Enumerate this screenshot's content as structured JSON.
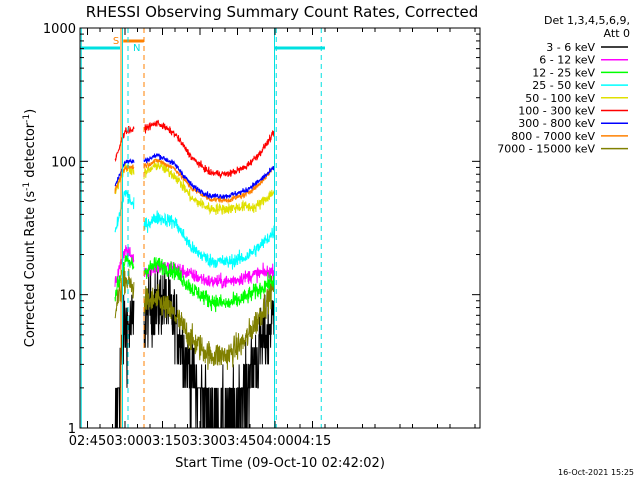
{
  "chart_data": {
    "type": "line",
    "title": "RHESSI Observing Summary Count Rates, Corrected",
    "xlabel": "Start Time (09-Oct-10 02:42:02)",
    "ylabel_main": "Corrected Count Rate (s",
    "ylabel_sup1": "-1",
    "ylabel_mid": " detector",
    "ylabel_sup2": "-1",
    "ylabel_end": ")",
    "yscale": "log",
    "ylim": [
      1,
      1000
    ],
    "xlim_min": [
      162,
      322
    ],
    "x_tick_minutes": [
      165,
      180,
      195,
      210,
      225,
      240,
      255
    ],
    "x_tick_labels": [
      "02:45",
      "03:00",
      "03:15",
      "03:30",
      "03:45",
      "04:00",
      "04:15"
    ],
    "y_ticks": [
      1,
      10,
      100,
      1000
    ],
    "y_tick_labels": [
      "1",
      "10",
      "100",
      "1000"
    ],
    "detector_header": [
      "Det 1,3,4,5,6,9,",
      "Att 0"
    ],
    "timestamp": "16-Oct-2021 15:25",
    "data_gaps_min": [
      [
        176,
        178
      ],
      [
        183.7,
        187.6
      ],
      [
        240,
        322
      ]
    ],
    "night_marker_min": [
      [
        162,
        178
      ],
      [
        240,
        260
      ]
    ],
    "saa_marker_min": [
      179.3,
      187.5
    ],
    "saa_label": "S",
    "night_label": "N",
    "dashed_markers": [
      {
        "minute": 181.2,
        "color": "#00e0e0"
      },
      {
        "minute": 187.6,
        "color": "#ff8000"
      },
      {
        "minute": 240.5,
        "color": "#00e0e0"
      },
      {
        "minute": 258.5,
        "color": "#00e0e0"
      }
    ],
    "solid_markers": [
      {
        "minute": 162.5,
        "color": "#00e0e0"
      },
      {
        "minute": 178.4,
        "color": "#ff8000"
      },
      {
        "minute": 179.0,
        "color": "#00e0e0"
      },
      {
        "minute": 239.8,
        "color": "#00e0e0"
      }
    ],
    "series": [
      {
        "name": "3 - 6 keV",
        "color": "#000000",
        "noise": 0.28,
        "points": [
          [
            176,
            1.0
          ],
          [
            180,
            6
          ],
          [
            187.6,
            6
          ],
          [
            190,
            8
          ],
          [
            196,
            9
          ],
          [
            202,
            5
          ],
          [
            208,
            2
          ],
          [
            215,
            1.3
          ],
          [
            222,
            1.2
          ],
          [
            228,
            2
          ],
          [
            234,
            4
          ],
          [
            239.8,
            7
          ]
        ]
      },
      {
        "name": "6 - 12 keV",
        "color": "#ff00ff",
        "noise": 0.05,
        "points": [
          [
            176,
            12
          ],
          [
            180,
            22
          ],
          [
            187.6,
            15
          ],
          [
            193,
            16
          ],
          [
            200,
            16
          ],
          [
            207,
            14
          ],
          [
            214,
            12.5
          ],
          [
            221,
            12.5
          ],
          [
            228,
            13.5
          ],
          [
            234,
            14.5
          ],
          [
            239.8,
            15
          ]
        ]
      },
      {
        "name": "12 - 25 keV",
        "color": "#00ff00",
        "noise": 0.06,
        "points": [
          [
            176,
            10
          ],
          [
            180,
            18
          ],
          [
            187.6,
            15
          ],
          [
            193,
            17
          ],
          [
            200,
            15
          ],
          [
            207,
            11
          ],
          [
            214,
            9
          ],
          [
            221,
            8.5
          ],
          [
            228,
            9.5
          ],
          [
            234,
            11
          ],
          [
            239.8,
            13
          ]
        ]
      },
      {
        "name": "25 - 50 keV",
        "color": "#00ffff",
        "noise": 0.05,
        "points": [
          [
            176,
            28
          ],
          [
            180,
            60
          ],
          [
            187.6,
            33
          ],
          [
            193,
            38
          ],
          [
            200,
            35
          ],
          [
            207,
            22
          ],
          [
            214,
            18
          ],
          [
            221,
            17.5
          ],
          [
            228,
            19
          ],
          [
            234,
            23
          ],
          [
            239.8,
            30
          ]
        ]
      },
      {
        "name": "50 - 100 keV",
        "color": "#e0e000",
        "noise": 0.04,
        "points": [
          [
            176,
            60
          ],
          [
            180,
            90
          ],
          [
            187.6,
            80
          ],
          [
            193,
            95
          ],
          [
            200,
            78
          ],
          [
            207,
            52
          ],
          [
            214,
            44
          ],
          [
            221,
            44
          ],
          [
            228,
            46
          ],
          [
            232,
            45
          ],
          [
            234,
            48
          ],
          [
            239.8,
            60
          ]
        ]
      },
      {
        "name": "100 - 300 keV",
        "color": "#ff0000",
        "noise": 0.025,
        "points": [
          [
            176,
            100
          ],
          [
            180,
            170
          ],
          [
            187.6,
            175
          ],
          [
            193,
            195
          ],
          [
            200,
            160
          ],
          [
            207,
            105
          ],
          [
            214,
            82
          ],
          [
            221,
            80
          ],
          [
            228,
            90
          ],
          [
            234,
            115
          ],
          [
            239.8,
            165
          ]
        ]
      },
      {
        "name": "300 - 800 keV",
        "color": "#0000ff",
        "noise": 0.02,
        "points": [
          [
            176,
            65
          ],
          [
            180,
            100
          ],
          [
            187.6,
            100
          ],
          [
            193,
            112
          ],
          [
            200,
            95
          ],
          [
            207,
            65
          ],
          [
            214,
            55
          ],
          [
            221,
            55
          ],
          [
            228,
            60
          ],
          [
            234,
            72
          ],
          [
            239.8,
            90
          ]
        ]
      },
      {
        "name": "800 - 7000 keV",
        "color": "#ff8000",
        "noise": 0.02,
        "points": [
          [
            176,
            60
          ],
          [
            180,
            90
          ],
          [
            187.6,
            92
          ],
          [
            193,
            102
          ],
          [
            200,
            88
          ],
          [
            207,
            62
          ],
          [
            214,
            52
          ],
          [
            221,
            51
          ],
          [
            228,
            56
          ],
          [
            234,
            68
          ],
          [
            239.8,
            92
          ]
        ]
      },
      {
        "name": "7000 - 15000 keV",
        "color": "#808000",
        "noise": 0.1,
        "points": [
          [
            176,
            8
          ],
          [
            180,
            13
          ],
          [
            187.6,
            9
          ],
          [
            193,
            9
          ],
          [
            200,
            7
          ],
          [
            207,
            4.5
          ],
          [
            214,
            3.5
          ],
          [
            221,
            3.5
          ],
          [
            228,
            4.5
          ],
          [
            234,
            7
          ],
          [
            239.8,
            12
          ]
        ]
      }
    ]
  }
}
